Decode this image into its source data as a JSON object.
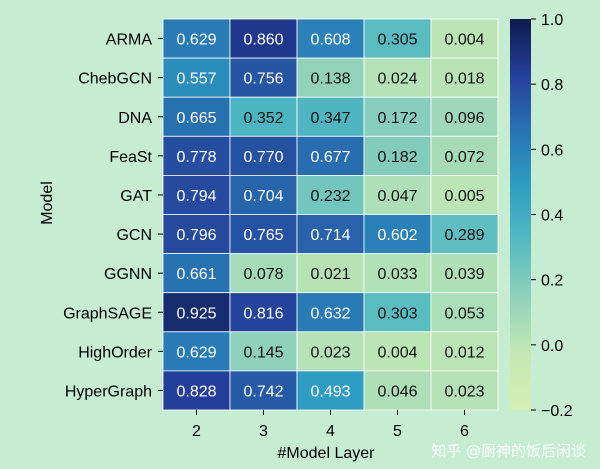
{
  "chart_data": {
    "type": "heatmap",
    "title": "",
    "xlabel": "#Model Layer",
    "ylabel": "Model",
    "x_categories": [
      "2",
      "3",
      "4",
      "5",
      "6"
    ],
    "y_categories": [
      "ARMA",
      "ChebGCN",
      "DNA",
      "FeaSt",
      "GAT",
      "GCN",
      "GGNN",
      "GraphSAGE",
      "HighOrder",
      "HyperGraph"
    ],
    "values": [
      [
        0.629,
        0.86,
        0.608,
        0.305,
        0.004
      ],
      [
        0.557,
        0.756,
        0.138,
        0.024,
        0.018
      ],
      [
        0.665,
        0.352,
        0.347,
        0.172,
        0.096
      ],
      [
        0.778,
        0.77,
        0.677,
        0.182,
        0.072
      ],
      [
        0.794,
        0.704,
        0.232,
        0.047,
        0.005
      ],
      [
        0.796,
        0.765,
        0.714,
        0.602,
        0.289
      ],
      [
        0.661,
        0.078,
        0.021,
        0.033,
        0.039
      ],
      [
        0.925,
        0.816,
        0.632,
        0.303,
        0.053
      ],
      [
        0.629,
        0.145,
        0.023,
        0.004,
        0.012
      ],
      [
        0.828,
        0.742,
        0.493,
        0.046,
        0.023
      ]
    ],
    "colorscale": "YlGnBu",
    "vmin": -0.2,
    "vmax": 1.0,
    "colorbar_ticks": [
      "1.0",
      "0.8",
      "0.6",
      "0.4",
      "0.2",
      "0.0",
      "−0.2"
    ],
    "colorbar_tick_values": [
      1.0,
      0.8,
      0.6,
      0.4,
      0.2,
      0.0,
      -0.2
    ],
    "annotation_format": "3 decimals"
  },
  "watermark": "知乎 @厨神的饭后闲谈"
}
